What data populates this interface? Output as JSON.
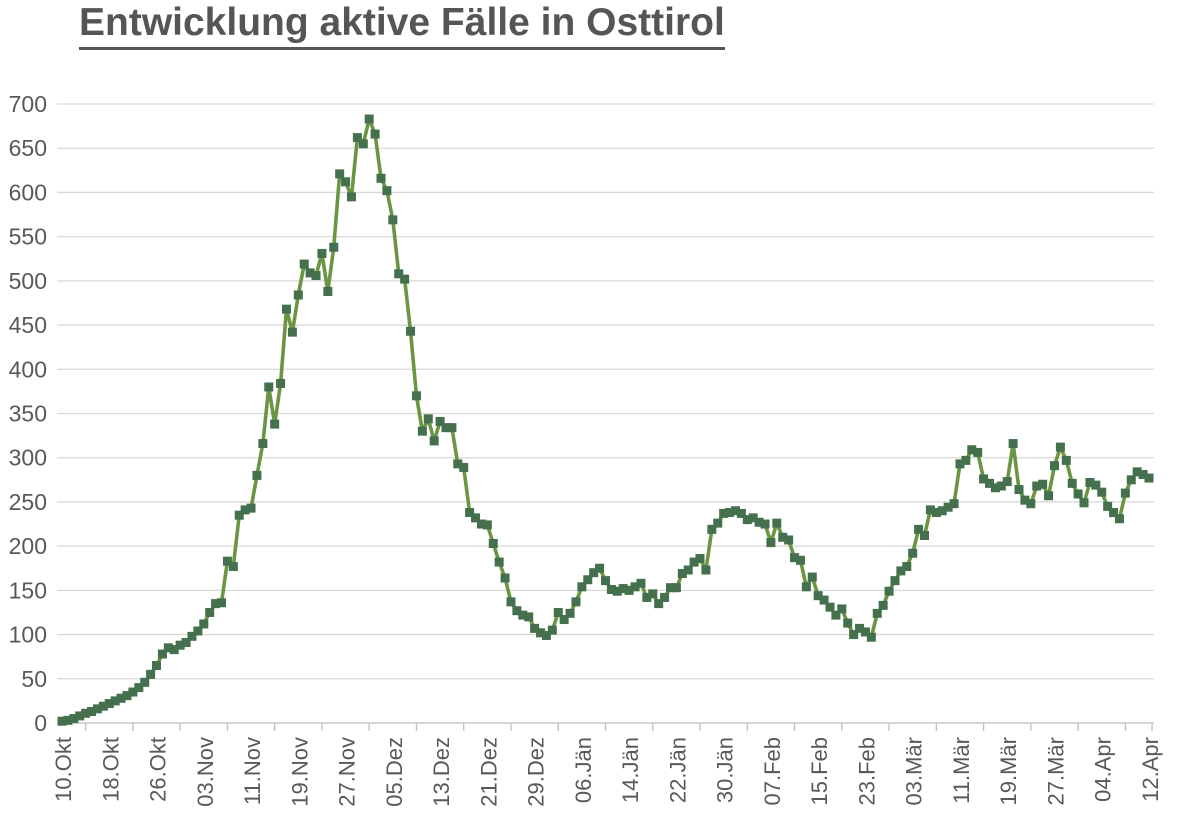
{
  "title": "Entwicklung aktive Fälle in Osttirol",
  "chart_data": {
    "type": "line",
    "title": "Entwicklung aktive Fälle in Osttirol",
    "xlabel": "",
    "ylabel": "",
    "ylim": [
      0,
      700
    ],
    "y_tick_step": 50,
    "y_tick_labels": [
      "0",
      "50",
      "100",
      "150",
      "200",
      "250",
      "300",
      "350",
      "400",
      "450",
      "500",
      "550",
      "600",
      "650",
      "700"
    ],
    "x_tick_labels": [
      "10.Okt",
      "18.Okt",
      "26.Okt",
      "03.Nov",
      "11.Nov",
      "19.Nov",
      "27.Nov",
      "05.Dez",
      "13.Dez",
      "21.Dez",
      "29.Dez",
      "06.Jän",
      "14.Jän",
      "22.Jän",
      "30.Jän",
      "07.Feb",
      "15.Feb",
      "23.Feb",
      "03.Mär",
      "11.Mär",
      "19.Mär",
      "27.Mär",
      "04.Apr",
      "12.Apr"
    ],
    "x_tick_interval_points": 8,
    "grid": "horizontal",
    "legend_position": "none",
    "marker_shape": "square",
    "line_color": "#6b9542",
    "marker_color": "#44704d",
    "gridline_color": "#d9d9d9",
    "axis_line_color": "#bfbfbf",
    "axis_text_color": "#595959",
    "title_color": "#555555",
    "background_color": "#ffffff",
    "values": [
      2,
      3,
      5,
      8,
      11,
      13,
      16,
      19,
      22,
      25,
      28,
      31,
      35,
      40,
      46,
      55,
      65,
      78,
      85,
      83,
      88,
      91,
      98,
      104,
      112,
      125,
      135,
      136,
      183,
      177,
      235,
      241,
      243,
      280,
      316,
      380,
      338,
      384,
      468,
      442,
      484,
      519,
      509,
      506,
      531,
      488,
      538,
      621,
      612,
      595,
      662,
      655,
      683,
      666,
      616,
      602,
      569,
      508,
      502,
      443,
      370,
      330,
      344,
      319,
      341,
      334,
      334,
      293,
      289,
      238,
      232,
      225,
      224,
      203,
      182,
      164,
      137,
      127,
      122,
      120,
      107,
      102,
      99,
      105,
      125,
      117,
      124,
      137,
      154,
      162,
      170,
      175,
      161,
      151,
      149,
      152,
      150,
      154,
      158,
      142,
      146,
      135,
      142,
      153,
      153,
      169,
      173,
      182,
      186,
      173,
      219,
      226,
      237,
      238,
      240,
      237,
      230,
      232,
      227,
      225,
      204,
      226,
      210,
      207,
      187,
      184,
      154,
      165,
      144,
      139,
      131,
      122,
      129,
      113,
      100,
      107,
      103,
      97,
      124,
      133,
      149,
      161,
      172,
      177,
      192,
      219,
      212,
      241,
      238,
      240,
      244,
      248,
      293,
      297,
      309,
      306,
      276,
      271,
      266,
      268,
      273,
      316,
      264,
      252,
      248,
      268,
      270,
      257,
      291,
      312,
      297,
      271,
      259,
      249,
      272,
      269,
      261,
      245,
      238,
      231,
      260,
      275,
      284,
      281,
      277
    ]
  }
}
